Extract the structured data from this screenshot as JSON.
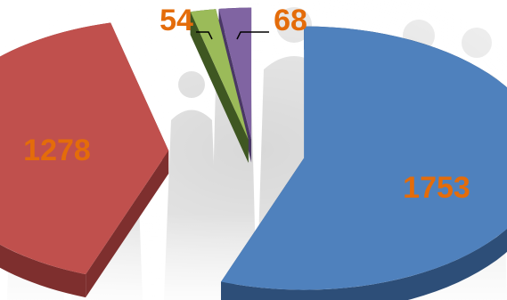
{
  "chart_data": {
    "type": "pie",
    "three_d": true,
    "exploded": true,
    "slices": [
      {
        "value": 1753,
        "label": "1753",
        "color": "#4f81bd",
        "side": "#2d4e78"
      },
      {
        "value": 1278,
        "label": "1278",
        "color": "#c0504d",
        "side": "#7e2f2e"
      },
      {
        "value": 54,
        "label": "54",
        "color": "#9bbb59",
        "side": "#3f5722"
      },
      {
        "value": 68,
        "label": "68",
        "color": "#8064a2",
        "side": "#4a3766"
      }
    ],
    "label_color": "#e46c0a",
    "legend": "none"
  }
}
